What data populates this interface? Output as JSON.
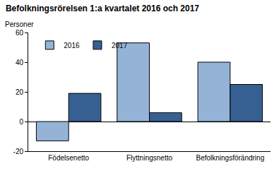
{
  "chart_data": {
    "type": "bar",
    "title": "Befolkningsrörelsen 1:a kvartalet 2016 och 2017",
    "ylabel": "Personer",
    "categories": [
      "Födelsenetto",
      "Flyttningsnetto",
      "Befolkningsförändring"
    ],
    "series": [
      {
        "name": "2016",
        "color": "#95b3d7",
        "values": [
          -13,
          53,
          40
        ]
      },
      {
        "name": "2017",
        "color": "#366092",
        "values": [
          19,
          6,
          25
        ]
      }
    ],
    "ylim": [
      -20,
      60
    ],
    "yticks": [
      -20,
      0,
      20,
      40,
      60
    ],
    "grid": false,
    "legend": "upper left"
  }
}
